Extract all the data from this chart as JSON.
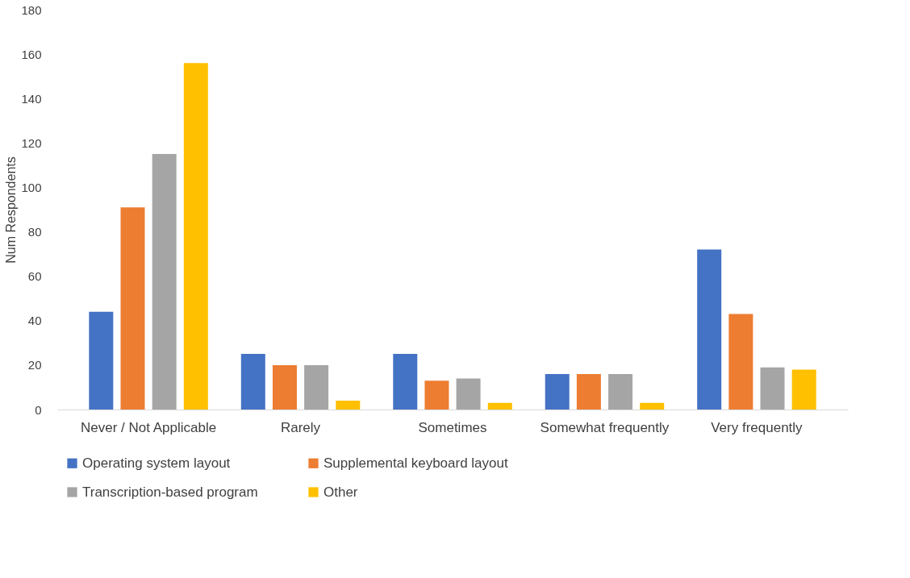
{
  "chart_data": {
    "type": "bar",
    "ylabel": "Num Respondents",
    "categories": [
      "Never / Not Applicable",
      "Rarely",
      "Sometimes",
      "Somewhat frequently",
      "Very frequently"
    ],
    "series": [
      {
        "name": "Operating system layout",
        "color": "#4472c4",
        "values": [
          44,
          25,
          25,
          16,
          72
        ]
      },
      {
        "name": "Supplemental keyboard layout",
        "color": "#ed7d31",
        "values": [
          91,
          20,
          13,
          16,
          43
        ]
      },
      {
        "name": "Transcription-based program",
        "color": "#a5a5a5",
        "values": [
          115,
          20,
          14,
          16,
          19
        ]
      },
      {
        "name": "Other",
        "color": "#ffc000",
        "values": [
          156,
          4,
          3,
          3,
          18
        ]
      }
    ],
    "ylim": [
      0,
      180
    ],
    "yticks": [
      0,
      20,
      40,
      60,
      80,
      100,
      120,
      140,
      160,
      180
    ],
    "grid": false,
    "legend": "bottom"
  }
}
